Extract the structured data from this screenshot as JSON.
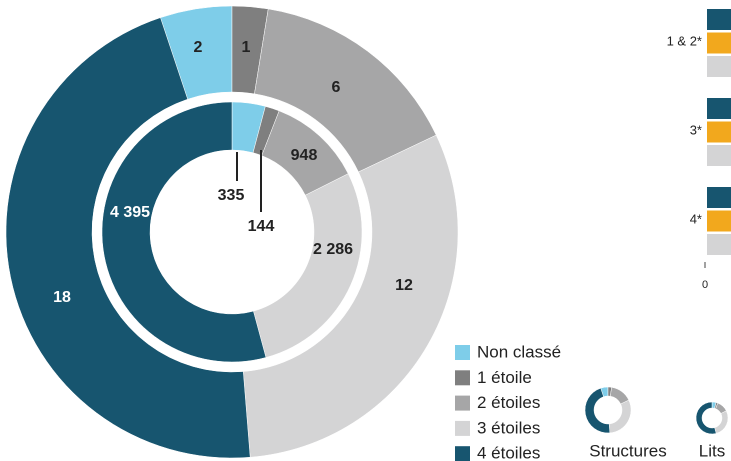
{
  "chart_data": [
    {
      "type": "donut",
      "categories": [
        "Non classé",
        "1 étoile",
        "2 étoiles",
        "3 étoiles",
        "4 étoiles"
      ],
      "colors": [
        "#7ecde9",
        "#7f7f7f",
        "#a6a6a7",
        "#d4d4d5",
        "#17556f"
      ],
      "series": [
        {
          "name": "Structures",
          "values": [
            2,
            1,
            6,
            12,
            18
          ]
        },
        {
          "name": "Lits",
          "values": [
            335,
            144,
            948,
            2286,
            4395
          ],
          "value_labels": [
            "335",
            "144",
            "948",
            "2 286",
            "4 395"
          ]
        }
      ]
    },
    {
      "type": "bar",
      "categories": [
        "1 & 2*",
        "3*",
        "4*"
      ],
      "colors": [
        "#17556f",
        "#f2a81d",
        "#d4d4d5"
      ],
      "xticks": [
        0
      ]
    }
  ]
}
